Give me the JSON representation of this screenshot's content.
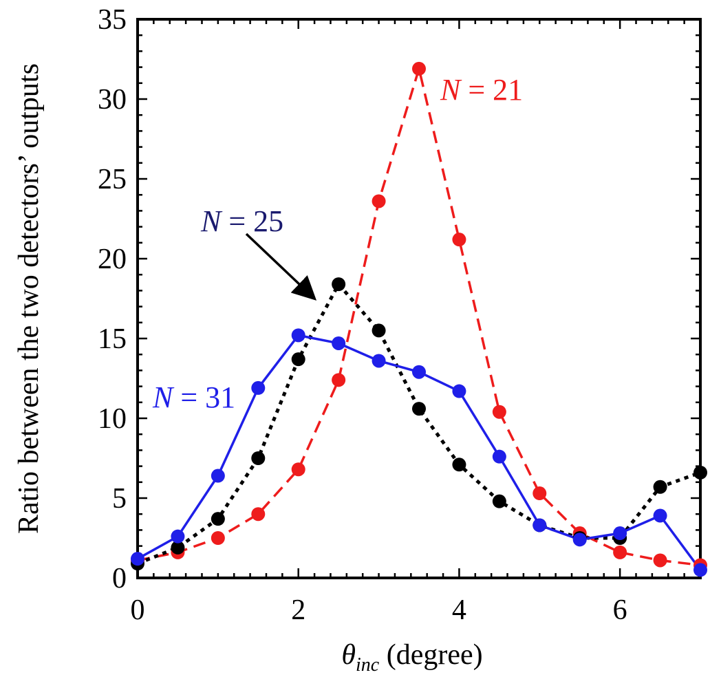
{
  "chart_data": {
    "type": "line",
    "title": "",
    "xlabel": {
      "symbol": "θ",
      "subscript": "inc",
      "unit": " (degree)"
    },
    "ylabel": "Ratio between the two detectors’ outputs",
    "xlim": [
      0,
      7
    ],
    "ylim": [
      0,
      35
    ],
    "xticks": [
      0,
      2,
      4,
      6
    ],
    "yticks": [
      0,
      5,
      10,
      15,
      20,
      25,
      30,
      35
    ],
    "grid": false,
    "series": [
      {
        "name": "N = 21",
        "label_italic": "N",
        "label_rest": " = 21",
        "color": "#ee1c1c",
        "line_style": "dashed",
        "x": [
          0,
          0.5,
          1,
          1.5,
          2,
          2.5,
          3,
          3.5,
          4,
          4.5,
          5,
          5.5,
          6,
          6.5,
          7
        ],
        "values": [
          1.1,
          1.6,
          2.5,
          4.0,
          6.8,
          12.4,
          23.6,
          31.9,
          21.2,
          10.4,
          5.3,
          2.8,
          1.6,
          1.1,
          0.8
        ]
      },
      {
        "name": "N = 25",
        "label_italic": "N",
        "label_rest": " = 25",
        "color": "#000000",
        "label_color": "#1a1a6e",
        "line_style": "dotted",
        "x": [
          0,
          0.5,
          1,
          1.5,
          2,
          2.5,
          3,
          3.5,
          4,
          4.5,
          5,
          5.5,
          6,
          6.5,
          7
        ],
        "values": [
          0.9,
          1.9,
          3.7,
          7.5,
          13.7,
          18.4,
          15.5,
          10.6,
          7.1,
          4.8,
          3.3,
          2.5,
          2.5,
          5.7,
          6.6
        ]
      },
      {
        "name": "N = 31",
        "label_italic": "N",
        "label_rest": " = 31",
        "color": "#1f1fe8",
        "line_style": "solid",
        "x": [
          0,
          0.5,
          1,
          1.5,
          2,
          2.5,
          3,
          3.5,
          4,
          4.5,
          5,
          5.5,
          6,
          6.5,
          7
        ],
        "values": [
          1.2,
          2.6,
          6.4,
          11.9,
          15.2,
          14.7,
          13.6,
          12.9,
          11.7,
          7.6,
          3.3,
          2.4,
          2.8,
          3.9,
          0.5
        ]
      }
    ],
    "annotations": [
      {
        "text": "arrow from N = 25 label to N = 25 peak",
        "target_series": "N = 25"
      }
    ]
  }
}
